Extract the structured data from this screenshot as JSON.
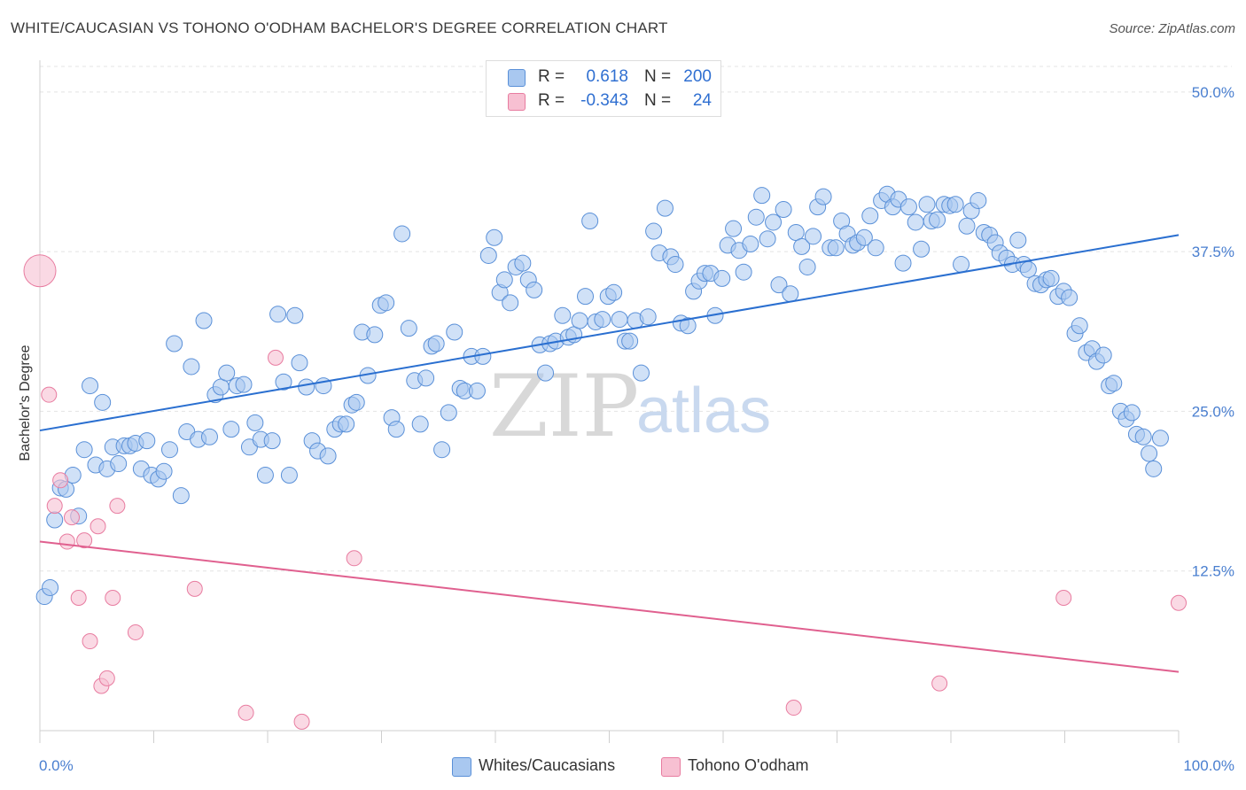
{
  "header": {
    "title": "WHITE/CAUCASIAN VS TOHONO O'ODHAM BACHELOR'S DEGREE CORRELATION CHART",
    "source": "Source: ZipAtlas.com"
  },
  "legend": {
    "row1": {
      "r_label": "R =",
      "r_value": "0.618",
      "n_label": "N =",
      "n_value": "200"
    },
    "row2": {
      "r_label": "R =",
      "r_value": "-0.343",
      "n_label": "N =",
      "n_value": "24"
    }
  },
  "bottom_legend": {
    "series1": "Whites/Caucasians",
    "series2": "Tohono O'odham"
  },
  "watermark": {
    "part1": "ZIP",
    "part2": "atlas"
  },
  "colors": {
    "blue_fill": "#a9c8f0",
    "blue_stroke": "#5a90d8",
    "blue_line": "#2a6fd0",
    "pink_fill": "#f7c0d2",
    "pink_stroke": "#e87ca0",
    "pink_line": "#e0608f",
    "grid": "#e4e4e4",
    "tick_label": "#4a7fd0"
  },
  "chart_data": {
    "type": "scatter",
    "title": "WHITE/CAUCASIAN VS TOHONO O'ODHAM BACHELOR'S DEGREE CORRELATION CHART",
    "xlabel": "",
    "ylabel": "Bachelor's Degree",
    "xlim": [
      0,
      100
    ],
    "ylim": [
      0,
      52
    ],
    "x_tick_labels": [
      "0.0%",
      "100.0%"
    ],
    "y_ticks": [
      12.5,
      25.0,
      37.5,
      50.0
    ],
    "y_tick_labels": [
      "12.5%",
      "25.0%",
      "37.5%",
      "50.0%"
    ],
    "grid": true,
    "legend_position": "top-center",
    "series": [
      {
        "name": "Whites/Caucasians",
        "r": 0.618,
        "n": 200,
        "trend": {
          "x": [
            0,
            100
          ],
          "y": [
            23.5,
            38.8
          ]
        },
        "points": [
          [
            0.4,
            10.5
          ],
          [
            0.9,
            11.2
          ],
          [
            1.3,
            16.5
          ],
          [
            1.8,
            19.0
          ],
          [
            2.3,
            18.9
          ],
          [
            2.9,
            20.0
          ],
          [
            3.4,
            16.8
          ],
          [
            3.9,
            22.0
          ],
          [
            4.4,
            27.0
          ],
          [
            4.9,
            20.8
          ],
          [
            5.5,
            25.7
          ],
          [
            5.9,
            20.5
          ],
          [
            6.4,
            22.2
          ],
          [
            6.9,
            20.9
          ],
          [
            7.4,
            22.3
          ],
          [
            7.9,
            22.3
          ],
          [
            8.4,
            22.5
          ],
          [
            8.9,
            20.5
          ],
          [
            9.4,
            22.7
          ],
          [
            9.8,
            20.0
          ],
          [
            10.4,
            19.7
          ],
          [
            10.9,
            20.3
          ],
          [
            11.4,
            22.0
          ],
          [
            11.8,
            30.3
          ],
          [
            12.4,
            18.4
          ],
          [
            12.9,
            23.4
          ],
          [
            13.3,
            28.5
          ],
          [
            13.9,
            22.8
          ],
          [
            14.4,
            32.1
          ],
          [
            14.9,
            23.0
          ],
          [
            15.4,
            26.3
          ],
          [
            15.9,
            26.9
          ],
          [
            16.4,
            28.0
          ],
          [
            16.8,
            23.6
          ],
          [
            17.3,
            27.0
          ],
          [
            17.9,
            27.1
          ],
          [
            18.4,
            22.2
          ],
          [
            18.9,
            24.1
          ],
          [
            19.4,
            22.8
          ],
          [
            19.8,
            20.0
          ],
          [
            20.4,
            22.7
          ],
          [
            20.9,
            32.6
          ],
          [
            21.4,
            27.3
          ],
          [
            21.9,
            20.0
          ],
          [
            22.4,
            32.5
          ],
          [
            22.8,
            28.8
          ],
          [
            23.4,
            26.9
          ],
          [
            23.9,
            22.7
          ],
          [
            24.4,
            21.9
          ],
          [
            24.9,
            27.0
          ],
          [
            25.3,
            21.5
          ],
          [
            25.9,
            23.6
          ],
          [
            26.4,
            24.0
          ],
          [
            26.9,
            24.0
          ],
          [
            27.4,
            25.5
          ],
          [
            27.8,
            25.7
          ],
          [
            28.3,
            31.2
          ],
          [
            28.8,
            27.8
          ],
          [
            29.4,
            31.0
          ],
          [
            29.9,
            33.3
          ],
          [
            30.4,
            33.5
          ],
          [
            30.9,
            24.5
          ],
          [
            31.3,
            23.6
          ],
          [
            31.8,
            38.9
          ],
          [
            32.4,
            31.5
          ],
          [
            32.9,
            27.4
          ],
          [
            33.4,
            24.0
          ],
          [
            33.9,
            27.6
          ],
          [
            34.4,
            30.1
          ],
          [
            34.8,
            30.3
          ],
          [
            35.3,
            22.0
          ],
          [
            35.9,
            24.9
          ],
          [
            36.4,
            31.2
          ],
          [
            36.9,
            26.8
          ],
          [
            37.3,
            26.6
          ],
          [
            37.9,
            29.3
          ],
          [
            38.4,
            26.6
          ],
          [
            38.9,
            29.3
          ],
          [
            39.4,
            37.2
          ],
          [
            39.9,
            38.6
          ],
          [
            40.4,
            34.3
          ],
          [
            40.8,
            35.3
          ],
          [
            41.3,
            33.5
          ],
          [
            41.8,
            36.3
          ],
          [
            42.4,
            36.6
          ],
          [
            42.9,
            35.3
          ],
          [
            43.4,
            34.5
          ],
          [
            43.9,
            30.2
          ],
          [
            44.4,
            28.0
          ],
          [
            44.8,
            30.3
          ],
          [
            45.3,
            30.5
          ],
          [
            45.9,
            32.5
          ],
          [
            46.4,
            30.8
          ],
          [
            46.9,
            31.0
          ],
          [
            47.4,
            32.1
          ],
          [
            47.9,
            34.0
          ],
          [
            48.3,
            39.9
          ],
          [
            48.8,
            32.0
          ],
          [
            49.4,
            32.2
          ],
          [
            49.9,
            34.0
          ],
          [
            50.4,
            34.3
          ],
          [
            50.9,
            32.2
          ],
          [
            51.4,
            30.5
          ],
          [
            51.8,
            30.5
          ],
          [
            52.3,
            32.1
          ],
          [
            52.8,
            28.0
          ],
          [
            53.4,
            32.4
          ],
          [
            53.9,
            39.1
          ],
          [
            54.4,
            37.4
          ],
          [
            54.9,
            40.9
          ],
          [
            55.4,
            37.1
          ],
          [
            55.8,
            36.5
          ],
          [
            56.3,
            31.9
          ],
          [
            56.9,
            31.7
          ],
          [
            57.4,
            34.4
          ],
          [
            57.9,
            35.2
          ],
          [
            58.4,
            35.8
          ],
          [
            58.9,
            35.8
          ],
          [
            59.3,
            32.5
          ],
          [
            59.9,
            35.4
          ],
          [
            60.4,
            38.0
          ],
          [
            60.9,
            39.3
          ],
          [
            61.4,
            37.6
          ],
          [
            61.8,
            35.9
          ],
          [
            62.4,
            38.1
          ],
          [
            62.9,
            40.2
          ],
          [
            63.4,
            41.9
          ],
          [
            63.9,
            38.5
          ],
          [
            64.4,
            39.8
          ],
          [
            64.9,
            34.9
          ],
          [
            65.3,
            40.8
          ],
          [
            65.9,
            34.2
          ],
          [
            66.4,
            39.0
          ],
          [
            66.9,
            37.9
          ],
          [
            67.4,
            36.3
          ],
          [
            67.9,
            38.7
          ],
          [
            68.3,
            41.0
          ],
          [
            68.8,
            41.8
          ],
          [
            69.4,
            37.8
          ],
          [
            69.9,
            37.8
          ],
          [
            70.4,
            39.9
          ],
          [
            70.9,
            38.9
          ],
          [
            71.4,
            38.0
          ],
          [
            71.8,
            38.2
          ],
          [
            72.4,
            38.6
          ],
          [
            72.9,
            40.3
          ],
          [
            73.4,
            37.8
          ],
          [
            73.9,
            41.5
          ],
          [
            74.4,
            42.0
          ],
          [
            74.9,
            41.0
          ],
          [
            75.4,
            41.6
          ],
          [
            75.8,
            36.6
          ],
          [
            76.3,
            41.0
          ],
          [
            76.9,
            39.8
          ],
          [
            77.4,
            37.7
          ],
          [
            77.9,
            41.2
          ],
          [
            78.3,
            39.9
          ],
          [
            78.8,
            40.0
          ],
          [
            79.4,
            41.2
          ],
          [
            79.9,
            41.1
          ],
          [
            80.4,
            41.2
          ],
          [
            80.9,
            36.5
          ],
          [
            81.4,
            39.5
          ],
          [
            81.8,
            40.7
          ],
          [
            82.4,
            41.5
          ],
          [
            82.9,
            39.0
          ],
          [
            83.4,
            38.8
          ],
          [
            83.9,
            38.2
          ],
          [
            84.3,
            37.4
          ],
          [
            84.9,
            37.0
          ],
          [
            85.4,
            36.5
          ],
          [
            85.9,
            38.4
          ],
          [
            86.4,
            36.5
          ],
          [
            86.8,
            36.1
          ],
          [
            87.4,
            35.0
          ],
          [
            87.9,
            34.9
          ],
          [
            88.4,
            35.3
          ],
          [
            88.8,
            35.4
          ],
          [
            89.4,
            34.0
          ],
          [
            89.9,
            34.4
          ],
          [
            90.4,
            33.9
          ],
          [
            90.9,
            31.1
          ],
          [
            91.3,
            31.7
          ],
          [
            91.9,
            29.6
          ],
          [
            92.4,
            29.9
          ],
          [
            92.8,
            28.9
          ],
          [
            93.4,
            29.4
          ],
          [
            93.9,
            27.0
          ],
          [
            94.3,
            27.2
          ],
          [
            94.9,
            25.0
          ],
          [
            95.4,
            24.4
          ],
          [
            95.9,
            24.9
          ],
          [
            96.3,
            23.2
          ],
          [
            96.9,
            23.0
          ],
          [
            97.4,
            21.7
          ],
          [
            97.8,
            20.5
          ],
          [
            98.4,
            22.9
          ]
        ]
      },
      {
        "name": "Tohono O'odham",
        "r": -0.343,
        "n": 24,
        "trend": {
          "x": [
            0,
            100
          ],
          "y": [
            14.8,
            4.6
          ]
        },
        "points": [
          [
            0.0,
            36.0
          ],
          [
            0.8,
            26.3
          ],
          [
            1.3,
            17.6
          ],
          [
            1.8,
            19.6
          ],
          [
            2.4,
            14.8
          ],
          [
            2.8,
            16.7
          ],
          [
            3.4,
            10.4
          ],
          [
            3.9,
            14.9
          ],
          [
            4.4,
            7.0
          ],
          [
            5.1,
            16.0
          ],
          [
            5.4,
            3.5
          ],
          [
            5.9,
            4.1
          ],
          [
            6.4,
            10.4
          ],
          [
            6.8,
            17.6
          ],
          [
            8.4,
            7.7
          ],
          [
            13.6,
            11.1
          ],
          [
            18.1,
            1.4
          ],
          [
            20.7,
            29.2
          ],
          [
            23.0,
            0.7
          ],
          [
            27.6,
            13.5
          ],
          [
            66.2,
            1.8
          ],
          [
            79.0,
            3.7
          ],
          [
            89.9,
            10.4
          ],
          [
            100.0,
            10.0
          ]
        ]
      }
    ]
  }
}
